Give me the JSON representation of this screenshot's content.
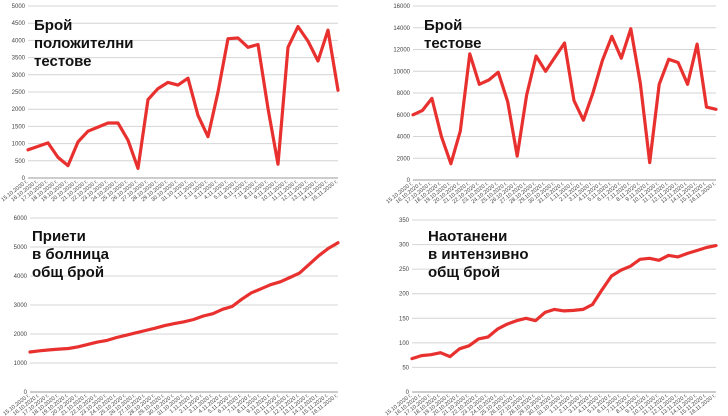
{
  "colors": {
    "line": "#e8312f",
    "grid": "#d4d4d4",
    "text": "#111111"
  },
  "chart_data": [
    {
      "type": "line",
      "title": "Брой\nположителни\nтестове",
      "ylim": [
        0,
        5000
      ],
      "yticks": [
        0,
        500,
        1000,
        1500,
        2000,
        2500,
        3000,
        3500,
        4000,
        4500,
        5000
      ],
      "grid": true,
      "x": [
        "15.10.2020 г.",
        "16.10.2020 г.",
        "17.10.2020 г.",
        "18.10.2020 г.",
        "19.10.2020 г.",
        "20.10.2020 г.",
        "21.10.2020 г.",
        "22.10.2020 г.",
        "23.10.2020 г.",
        "24.10.2020 г.",
        "25.10.2020 г.",
        "26.10.2020 г.",
        "27.10.2020 г.",
        "28.10.2020 г.",
        "29.10.2020 г.",
        "30.10.2020 г.",
        "31.10.2020 г.",
        "1.11.2020 г.",
        "2.11.2020 г.",
        "3.11.2020 г.",
        "4.11.2020 г.",
        "5.11.2020 г.",
        "6.11.2020 г.",
        "7.11.2020 г.",
        "8.11.2020 г.",
        "9.11.2020 г.",
        "10.11.2020 г.",
        "11.11.2020 г.",
        "12.11.2020 г.",
        "13.11.2020 г.",
        "14.11.2020 г.",
        "15.11.2020 г."
      ],
      "series": [
        {
          "values": [
            820,
            920,
            1020,
            600,
            360,
            1050,
            1360,
            1480,
            1600,
            1600,
            1100,
            280,
            2280,
            2600,
            2780,
            2700,
            2900,
            1820,
            1200,
            2500,
            4050,
            4070,
            3800,
            3880,
            2020,
            400,
            3800,
            4400,
            3980,
            3400,
            4300,
            2550
          ]
        }
      ]
    },
    {
      "type": "line",
      "title": "Брой\nтестове",
      "ylim": [
        0,
        16000
      ],
      "yticks": [
        0,
        2000,
        4000,
        6000,
        8000,
        10000,
        12000,
        14000,
        16000
      ],
      "grid": true,
      "x": [
        "15.10.2020 г.",
        "16.10.2020 г.",
        "17.10.2020 г.",
        "18.10.2020 г.",
        "19.10.2020 г.",
        "20.10.2020 г.",
        "21.10.2020 г.",
        "22.10.2020 г.",
        "23.10.2020 г.",
        "24.10.2020 г.",
        "25.10.2020 г.",
        "26.10.2020 г.",
        "27.10.2020 г.",
        "28.10.2020 г.",
        "29.10.2020 г.",
        "30.10.2020 г.",
        "31.10.2020 г.",
        "1.11.2020 г.",
        "2.11.2020 г.",
        "3.11.2020 г.",
        "4.11.2020 г.",
        "5.11.2020 г.",
        "6.11.2020 г.",
        "7.11.2020 г.",
        "8.11.2020 г.",
        "9.11.2020 г.",
        "10.11.2020 г.",
        "11.11.2020 г.",
        "12.11.2020 г.",
        "13.11.2020 г.",
        "14.11.2020 г.",
        "15.11.2020 г.",
        "16.11.2020 г."
      ],
      "series": [
        {
          "values": [
            6000,
            6400,
            7500,
            4000,
            1500,
            4500,
            11600,
            8800,
            9200,
            9900,
            7200,
            2200,
            7800,
            11400,
            10000,
            11300,
            12600,
            7300,
            5500,
            8000,
            11000,
            13200,
            11200,
            13900,
            8900,
            1600,
            8800,
            11100,
            10800,
            8800,
            12500,
            6700,
            6500
          ]
        }
      ]
    },
    {
      "type": "line",
      "title": "Приети\nв болница\nобщ брой",
      "ylim": [
        0,
        6000
      ],
      "yticks": [
        0,
        1000,
        2000,
        3000,
        4000,
        5000,
        6000
      ],
      "grid": true,
      "x": [
        "15.10.2020 г.",
        "16.10.2020 г.",
        "17.10.2020 г.",
        "18.10.2020 г.",
        "19.10.2020 г.",
        "20.10.2020 г.",
        "21.10.2020 г.",
        "22.10.2020 г.",
        "23.10.2020 г.",
        "24.10.2020 г.",
        "25.10.2020 г.",
        "26.10.2020 г.",
        "27.10.2020 г.",
        "28.10.2020 г.",
        "29.10.2020 г.",
        "30.10.2020 г.",
        "31.10.2020 г.",
        "1.11.2020 г.",
        "2.11.2020 г.",
        "3.11.2020 г.",
        "4.11.2020 г.",
        "5.11.2020 г.",
        "6.11.2020 г.",
        "7.11.2020 г.",
        "8.11.2020 г.",
        "9.11.2020 г.",
        "10.11.2020 г.",
        "11.11.2020 г.",
        "12.11.2020 г.",
        "13.11.2020 г.",
        "14.11.2020 г.",
        "15.11.2020 г.",
        "16.11.2020 г."
      ],
      "series": [
        {
          "values": [
            1380,
            1420,
            1450,
            1480,
            1500,
            1560,
            1640,
            1720,
            1780,
            1880,
            1960,
            2040,
            2120,
            2200,
            2290,
            2360,
            2420,
            2500,
            2620,
            2700,
            2850,
            2950,
            3200,
            3420,
            3560,
            3700,
            3800,
            3950,
            4100,
            4400,
            4700,
            4950,
            5150
          ]
        }
      ]
    },
    {
      "type": "line",
      "title": "Наотанени\nв интензивно\nобщ брой",
      "ylim": [
        0,
        350
      ],
      "yticks": [
        0,
        50,
        100,
        150,
        200,
        250,
        300,
        350
      ],
      "grid": true,
      "x": [
        "15.10.2020 г.",
        "16.10.2020 г.",
        "17.10.2020 г.",
        "18.10.2020 г.",
        "19.10.2020 г.",
        "20.10.2020 г.",
        "21.10.2020 г.",
        "22.10.2020 г.",
        "23.10.2020 г.",
        "24.10.2020 г.",
        "25.10.2020 г.",
        "26.10.2020 г.",
        "27.10.2020 г.",
        "28.10.2020 г.",
        "29.10.2020 г.",
        "30.10.2020 г.",
        "31.10.2020 г.",
        "1.11.2020 г.",
        "2.11.2020 г.",
        "3.11.2020 г.",
        "4.11.2020 г.",
        "5.11.2020 г.",
        "6.11.2020 г.",
        "7.11.2020 г.",
        "8.11.2020 г.",
        "9.11.2020 г.",
        "10.11.2020 г.",
        "11.11.2020 г.",
        "12.11.2020 г.",
        "13.11.2020 г.",
        "14.11.2020 г.",
        "15.11.2020 г.",
        "16.11.2020 г."
      ],
      "series": [
        {
          "values": [
            68,
            74,
            76,
            80,
            72,
            88,
            94,
            108,
            112,
            128,
            138,
            145,
            150,
            145,
            162,
            168,
            165,
            166,
            168,
            178,
            208,
            236,
            248,
            256,
            270,
            272,
            268,
            278,
            275,
            282,
            288,
            294,
            298
          ]
        }
      ]
    }
  ]
}
